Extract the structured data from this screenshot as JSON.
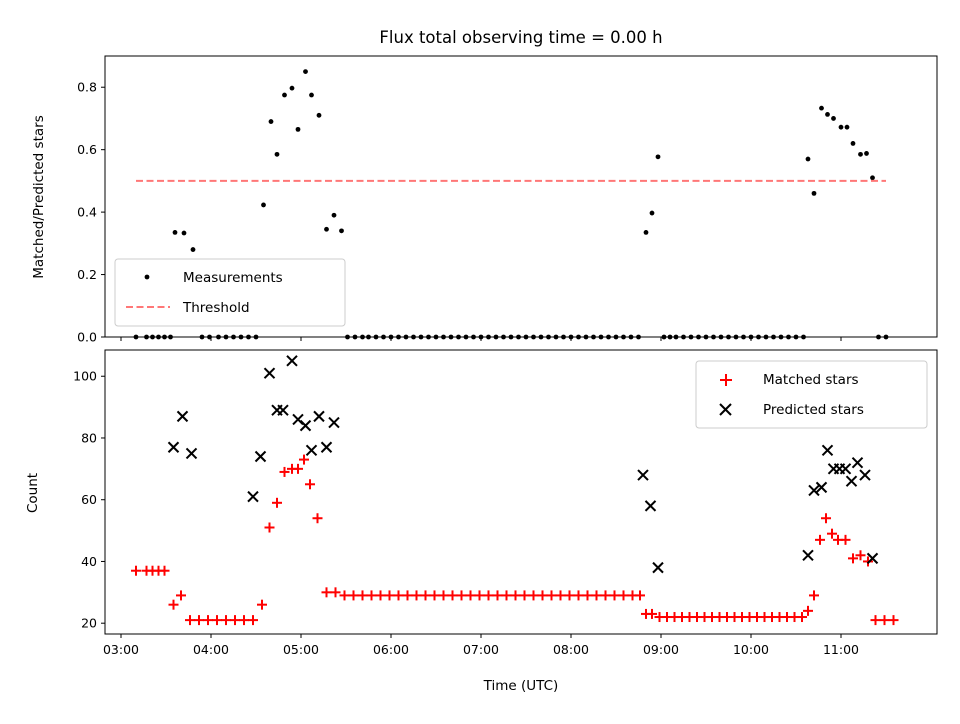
{
  "chart_data": [
    {
      "type": "scatter",
      "title": "Flux total observing time = 0.00 h",
      "xlabel": "",
      "ylabel": "Matched/Predicted stars",
      "xlim": [
        "03:00",
        "12:00"
      ],
      "ylim": [
        0,
        0.9
      ],
      "yticks": [
        "0.0",
        "0.2",
        "0.4",
        "0.6",
        "0.8"
      ],
      "legend_position": "lower-left",
      "series": [
        {
          "name": "Measurements",
          "marker": "dot",
          "color": "#000000",
          "points": [
            [
              "03:10",
              0.0
            ],
            [
              "03:17",
              0.0
            ],
            [
              "03:21",
              0.0
            ],
            [
              "03:25",
              0.0
            ],
            [
              "03:29",
              0.0
            ],
            [
              "03:33",
              0.0
            ],
            [
              "03:36",
              0.335
            ],
            [
              "03:42",
              0.333
            ],
            [
              "03:48",
              0.28
            ],
            [
              "03:54",
              0.0
            ],
            [
              "03:59",
              0.0
            ],
            [
              "04:05",
              0.0
            ],
            [
              "04:10",
              0.0
            ],
            [
              "04:15",
              0.0
            ],
            [
              "04:20",
              0.0
            ],
            [
              "04:25",
              0.0
            ],
            [
              "04:30",
              0.0
            ],
            [
              "04:35",
              0.423
            ],
            [
              "04:40",
              0.69
            ],
            [
              "04:44",
              0.585
            ],
            [
              "04:49",
              0.775
            ],
            [
              "04:54",
              0.797
            ],
            [
              "04:58",
              0.665
            ],
            [
              "05:03",
              0.85
            ],
            [
              "05:07",
              0.775
            ],
            [
              "05:12",
              0.71
            ],
            [
              "05:17",
              0.345
            ],
            [
              "05:22",
              0.39
            ],
            [
              "05:27",
              0.34
            ],
            [
              "05:31",
              0.0
            ],
            [
              "05:36",
              0.0
            ],
            [
              "05:41",
              0.0
            ],
            [
              "05:45",
              0.0
            ],
            [
              "05:50",
              0.0
            ],
            [
              "05:55",
              0.0
            ],
            [
              "06:00",
              0.0
            ],
            [
              "06:05",
              0.0
            ],
            [
              "06:10",
              0.0
            ],
            [
              "06:15",
              0.0
            ],
            [
              "06:20",
              0.0
            ],
            [
              "06:25",
              0.0
            ],
            [
              "06:30",
              0.0
            ],
            [
              "06:35",
              0.0
            ],
            [
              "06:40",
              0.0
            ],
            [
              "06:45",
              0.0
            ],
            [
              "06:50",
              0.0
            ],
            [
              "06:55",
              0.0
            ],
            [
              "07:00",
              0.0
            ],
            [
              "07:05",
              0.0
            ],
            [
              "07:10",
              0.0
            ],
            [
              "07:15",
              0.0
            ],
            [
              "07:20",
              0.0
            ],
            [
              "07:25",
              0.0
            ],
            [
              "07:30",
              0.0
            ],
            [
              "07:35",
              0.0
            ],
            [
              "07:40",
              0.0
            ],
            [
              "07:45",
              0.0
            ],
            [
              "07:50",
              0.0
            ],
            [
              "07:55",
              0.0
            ],
            [
              "08:00",
              0.0
            ],
            [
              "08:05",
              0.0
            ],
            [
              "08:10",
              0.0
            ],
            [
              "08:15",
              0.0
            ],
            [
              "08:20",
              0.0
            ],
            [
              "08:25",
              0.0
            ],
            [
              "08:30",
              0.0
            ],
            [
              "08:35",
              0.0
            ],
            [
              "08:40",
              0.0
            ],
            [
              "08:45",
              0.0
            ],
            [
              "08:50",
              0.335
            ],
            [
              "08:54",
              0.397
            ],
            [
              "08:58",
              0.577
            ],
            [
              "09:02",
              0.0
            ],
            [
              "09:06",
              0.0
            ],
            [
              "09:10",
              0.0
            ],
            [
              "09:15",
              0.0
            ],
            [
              "09:20",
              0.0
            ],
            [
              "09:25",
              0.0
            ],
            [
              "09:30",
              0.0
            ],
            [
              "09:35",
              0.0
            ],
            [
              "09:40",
              0.0
            ],
            [
              "09:45",
              0.0
            ],
            [
              "09:50",
              0.0
            ],
            [
              "09:55",
              0.0
            ],
            [
              "10:00",
              0.0
            ],
            [
              "10:05",
              0.0
            ],
            [
              "10:10",
              0.0
            ],
            [
              "10:15",
              0.0
            ],
            [
              "10:20",
              0.0
            ],
            [
              "10:25",
              0.0
            ],
            [
              "10:30",
              0.0
            ],
            [
              "10:35",
              0.0
            ],
            [
              "10:38",
              0.57
            ],
            [
              "10:42",
              0.46
            ],
            [
              "10:47",
              0.733
            ],
            [
              "10:51",
              0.713
            ],
            [
              "10:55",
              0.7
            ],
            [
              "11:00",
              0.672
            ],
            [
              "11:04",
              0.672
            ],
            [
              "11:08",
              0.62
            ],
            [
              "11:13",
              0.585
            ],
            [
              "11:17",
              0.588
            ],
            [
              "11:21",
              0.51
            ],
            [
              "11:25",
              0.0
            ],
            [
              "11:30",
              0.0
            ]
          ]
        },
        {
          "name": "Threshold",
          "marker": "dashed-line",
          "color": "#ff7777",
          "points": [
            [
              "03:10",
              0.5
            ],
            [
              "11:30",
              0.5
            ]
          ]
        }
      ]
    },
    {
      "type": "scatter",
      "title": "",
      "xlabel": "Time (UTC)",
      "ylabel": "Count",
      "xlim": [
        "03:00",
        "12:00"
      ],
      "ylim": [
        16.5,
        108.5
      ],
      "yticks": [
        "20",
        "40",
        "60",
        "80",
        "100"
      ],
      "xticks": [
        "03:00",
        "04:00",
        "05:00",
        "06:00",
        "07:00",
        "08:00",
        "09:00",
        "10:00",
        "11:00"
      ],
      "legend_position": "upper-right",
      "series": [
        {
          "name": "Matched stars",
          "marker": "plus",
          "color": "#ff0000",
          "points": [
            [
              "03:10",
              37
            ],
            [
              "03:17",
              37
            ],
            [
              "03:21",
              37
            ],
            [
              "03:25",
              37
            ],
            [
              "03:29",
              37
            ],
            [
              "03:35",
              26
            ],
            [
              "03:40",
              29
            ],
            [
              "03:46",
              21
            ],
            [
              "03:52",
              21
            ],
            [
              "03:58",
              21
            ],
            [
              "04:04",
              21
            ],
            [
              "04:10",
              21
            ],
            [
              "04:16",
              21
            ],
            [
              "04:22",
              21
            ],
            [
              "04:28",
              21
            ],
            [
              "04:34",
              26
            ],
            [
              "04:39",
              51
            ],
            [
              "04:44",
              59
            ],
            [
              "04:49",
              69
            ],
            [
              "04:54",
              70
            ],
            [
              "04:58",
              70
            ],
            [
              "05:02",
              73
            ],
            [
              "05:06",
              65
            ],
            [
              "05:11",
              54
            ],
            [
              "05:17",
              30
            ],
            [
              "05:23",
              30
            ],
            [
              "05:29",
              29
            ],
            [
              "05:35",
              29
            ],
            [
              "05:41",
              29
            ],
            [
              "05:47",
              29
            ],
            [
              "05:53",
              29
            ],
            [
              "05:59",
              29
            ],
            [
              "06:05",
              29
            ],
            [
              "06:11",
              29
            ],
            [
              "06:17",
              29
            ],
            [
              "06:23",
              29
            ],
            [
              "06:29",
              29
            ],
            [
              "06:35",
              29
            ],
            [
              "06:41",
              29
            ],
            [
              "06:47",
              29
            ],
            [
              "06:53",
              29
            ],
            [
              "06:59",
              29
            ],
            [
              "07:05",
              29
            ],
            [
              "07:11",
              29
            ],
            [
              "07:17",
              29
            ],
            [
              "07:23",
              29
            ],
            [
              "07:29",
              29
            ],
            [
              "07:35",
              29
            ],
            [
              "07:41",
              29
            ],
            [
              "07:47",
              29
            ],
            [
              "07:53",
              29
            ],
            [
              "07:59",
              29
            ],
            [
              "08:05",
              29
            ],
            [
              "08:11",
              29
            ],
            [
              "08:17",
              29
            ],
            [
              "08:23",
              29
            ],
            [
              "08:29",
              29
            ],
            [
              "08:35",
              29
            ],
            [
              "08:41",
              29
            ],
            [
              "08:46",
              29
            ],
            [
              "08:50",
              23
            ],
            [
              "08:54",
              23
            ],
            [
              "08:59",
              22
            ],
            [
              "09:04",
              22
            ],
            [
              "09:09",
              22
            ],
            [
              "09:14",
              22
            ],
            [
              "09:19",
              22
            ],
            [
              "09:24",
              22
            ],
            [
              "09:29",
              22
            ],
            [
              "09:34",
              22
            ],
            [
              "09:39",
              22
            ],
            [
              "09:44",
              22
            ],
            [
              "09:49",
              22
            ],
            [
              "09:54",
              22
            ],
            [
              "09:59",
              22
            ],
            [
              "10:04",
              22
            ],
            [
              "10:09",
              22
            ],
            [
              "10:14",
              22
            ],
            [
              "10:19",
              22
            ],
            [
              "10:24",
              22
            ],
            [
              "10:29",
              22
            ],
            [
              "10:34",
              22
            ],
            [
              "10:38",
              24
            ],
            [
              "10:42",
              29
            ],
            [
              "10:46",
              47
            ],
            [
              "10:50",
              54
            ],
            [
              "10:54",
              49
            ],
            [
              "10:58",
              47
            ],
            [
              "11:03",
              47
            ],
            [
              "11:08",
              41
            ],
            [
              "11:13",
              42
            ],
            [
              "11:18",
              40
            ],
            [
              "11:23",
              21
            ],
            [
              "11:29",
              21
            ],
            [
              "11:35",
              21
            ]
          ]
        },
        {
          "name": "Predicted stars",
          "marker": "x",
          "color": "#000000",
          "points": [
            [
              "03:35",
              77
            ],
            [
              "03:41",
              87
            ],
            [
              "03:47",
              75
            ],
            [
              "04:28",
              61
            ],
            [
              "04:33",
              74
            ],
            [
              "04:39",
              101
            ],
            [
              "04:44",
              89
            ],
            [
              "04:48",
              89
            ],
            [
              "04:54",
              105
            ],
            [
              "04:58",
              86
            ],
            [
              "05:03",
              84
            ],
            [
              "05:07",
              76
            ],
            [
              "05:12",
              87
            ],
            [
              "05:17",
              77
            ],
            [
              "05:22",
              85
            ],
            [
              "08:48",
              68
            ],
            [
              "08:53",
              58
            ],
            [
              "08:58",
              38
            ],
            [
              "10:38",
              42
            ],
            [
              "10:42",
              63
            ],
            [
              "10:47",
              64
            ],
            [
              "10:51",
              76
            ],
            [
              "10:55",
              70
            ],
            [
              "10:59",
              70
            ],
            [
              "11:03",
              70
            ],
            [
              "11:07",
              66
            ],
            [
              "11:11",
              72
            ],
            [
              "11:16",
              68
            ],
            [
              "11:21",
              41
            ]
          ]
        }
      ]
    }
  ]
}
